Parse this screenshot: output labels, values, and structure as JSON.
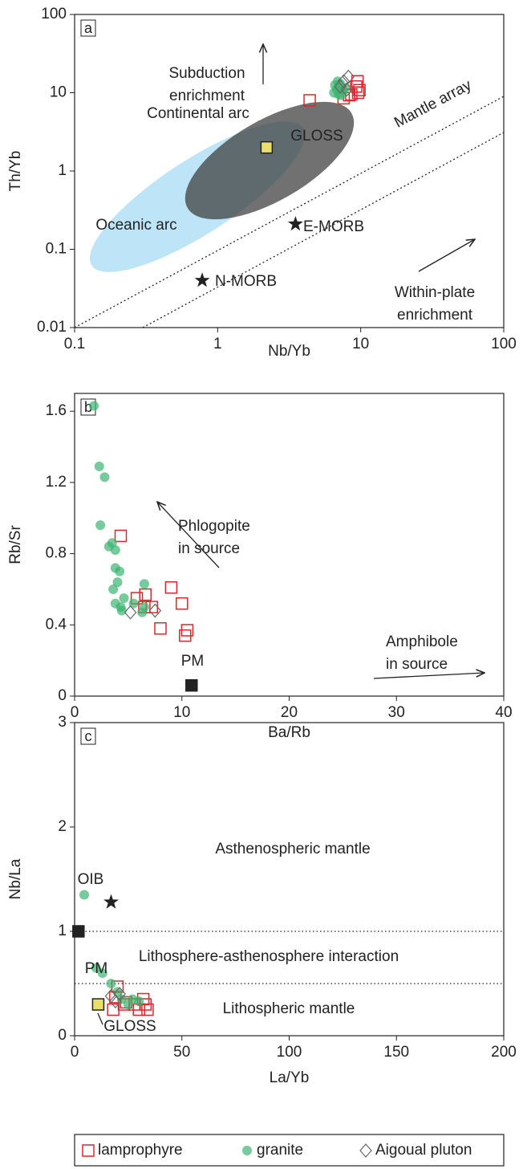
{
  "chart_data": [
    {
      "type": "scatter",
      "panel_label": "a",
      "x_label": "Nb/Yb",
      "y_label": "Th/Yb",
      "xscale": "log",
      "yscale": "log",
      "xlim": [
        0.1,
        100
      ],
      "ylim": [
        0.01,
        100
      ],
      "xticks": [
        0.1,
        1,
        10,
        100
      ],
      "yticks": [
        0.01,
        0.1,
        1,
        10,
        100
      ],
      "series": [
        {
          "name": "lamprophyre",
          "marker": "square",
          "color": "#e0262a",
          "x": [
            4.4,
            7.6,
            8.3,
            9.6,
            9.5,
            9.3,
            9.8,
            8.6
          ],
          "values": [
            8,
            8.5,
            9.3,
            10,
            14,
            12,
            10.8,
            9.5
          ]
        },
        {
          "name": "granite",
          "marker": "circle",
          "color": "#3cb371",
          "x": [
            6.5,
            7,
            7,
            6.8,
            7.2,
            7.5,
            6.6,
            7.3,
            7.8,
            6.9
          ],
          "values": [
            10,
            12,
            9.5,
            11,
            13,
            10.5,
            12.5,
            9.3,
            11.5,
            14
          ]
        },
        {
          "name": "Aigoual pluton",
          "marker": "diamond",
          "color": "#666666",
          "x": [
            7.6,
            8.2,
            7.2,
            8
          ],
          "values": [
            14,
            16,
            12,
            11
          ]
        }
      ],
      "references": [
        {
          "label": "GLOSS",
          "marker": "square",
          "color": "#e8e06a",
          "x": 2.2,
          "y": 2
        },
        {
          "label": "E-MORB",
          "marker": "star",
          "color": "#222222",
          "x": 3.5,
          "y": 0.21
        },
        {
          "label": "N-MORB",
          "marker": "star",
          "color": "#222222",
          "x": 0.78,
          "y": 0.04
        }
      ],
      "annotations": [
        [
          "Subduction",
          "enrichment"
        ],
        [
          "Continental arc"
        ],
        [
          "Mantle array"
        ],
        [
          "Oceanic arc"
        ],
        [
          "Within-plate",
          "enrichment"
        ]
      ]
    },
    {
      "type": "scatter",
      "panel_label": "b",
      "x_label": "Ba/Rb",
      "y_label": "Rb/Sr",
      "xlim": [
        0,
        40
      ],
      "ylim": [
        0,
        1.7
      ],
      "xticks": [
        0,
        10,
        20,
        30,
        40
      ],
      "yticks": [
        0,
        0.4,
        0.8,
        1.2,
        1.6
      ],
      "series": [
        {
          "marker": "square",
          "color": "#e0262a",
          "x": [
            4.3,
            5.8,
            6.6,
            6.5,
            7.2,
            9,
            10,
            10.5,
            10.3,
            8
          ],
          "values": [
            0.9,
            0.55,
            0.57,
            0.5,
            0.5,
            0.61,
            0.52,
            0.37,
            0.34,
            0.38
          ]
        },
        {
          "marker": "circle",
          "color": "#3cb371",
          "x": [
            1.8,
            2.3,
            2.8,
            2.4,
            3.2,
            3.8,
            3.5,
            3.8,
            4.2,
            3.6,
            4,
            3.8,
            4.3,
            4.6,
            4.4,
            6.5,
            6.5,
            6.3,
            5.5
          ],
          "values": [
            1.63,
            1.29,
            1.23,
            0.96,
            0.84,
            0.82,
            0.86,
            0.72,
            0.7,
            0.6,
            0.64,
            0.52,
            0.5,
            0.55,
            0.48,
            0.63,
            0.5,
            0.47,
            0.52
          ]
        },
        {
          "marker": "diamond",
          "color": "#666666",
          "x": [
            5.2,
            7.5
          ],
          "values": [
            0.47,
            0.48
          ]
        }
      ],
      "references": [
        {
          "label": "PM",
          "marker": "square",
          "color": "#222222",
          "x": 10.9,
          "y": 0.06
        }
      ],
      "annotations": [
        [
          "Phlogopite",
          "in source"
        ],
        [
          "Amphibole",
          "in source"
        ]
      ]
    },
    {
      "type": "scatter",
      "panel_label": "c",
      "x_label": "La/Yb",
      "y_label": "Nb/La",
      "xlim": [
        0,
        200
      ],
      "ylim": [
        0,
        3
      ],
      "xticks": [
        0,
        50,
        100,
        150,
        200
      ],
      "yticks": [
        0,
        1,
        2,
        3
      ],
      "hlines": [
        1,
        0.5
      ],
      "series": [
        {
          "marker": "square",
          "color": "#e0262a",
          "x": [
            20,
            19,
            24,
            18,
            23,
            30,
            32,
            33,
            34,
            28
          ],
          "values": [
            0.47,
            0.37,
            0.32,
            0.25,
            0.3,
            0.25,
            0.35,
            0.3,
            0.25,
            0.3
          ]
        },
        {
          "marker": "circle",
          "color": "#3cb371",
          "x": [
            4.5,
            10,
            13,
            17,
            20,
            22,
            25,
            27,
            30
          ],
          "values": [
            1.35,
            0.65,
            0.6,
            0.5,
            0.42,
            0.35,
            0.3,
            0.35,
            0.33
          ]
        },
        {
          "marker": "diamond",
          "color": "#666666",
          "x": [
            17,
            19,
            21
          ],
          "values": [
            0.38,
            0.33,
            0.4
          ]
        }
      ],
      "references": [
        {
          "label": "OIB",
          "marker": "star",
          "color": "#222222",
          "x": 17,
          "y": 1.28
        },
        {
          "label": "PM",
          "marker": "square",
          "color": "#222222",
          "x": 1.8,
          "y": 1.0
        },
        {
          "label": "GLOSS",
          "marker": "square",
          "color": "#e8e06a",
          "x": 11,
          "y": 0.3
        }
      ],
      "annotations": [
        [
          "Asthenospheric mantle"
        ],
        [
          "Lithosphere-asthenosphere interaction"
        ],
        [
          "Lithospheric mantle"
        ]
      ]
    }
  ]
}
